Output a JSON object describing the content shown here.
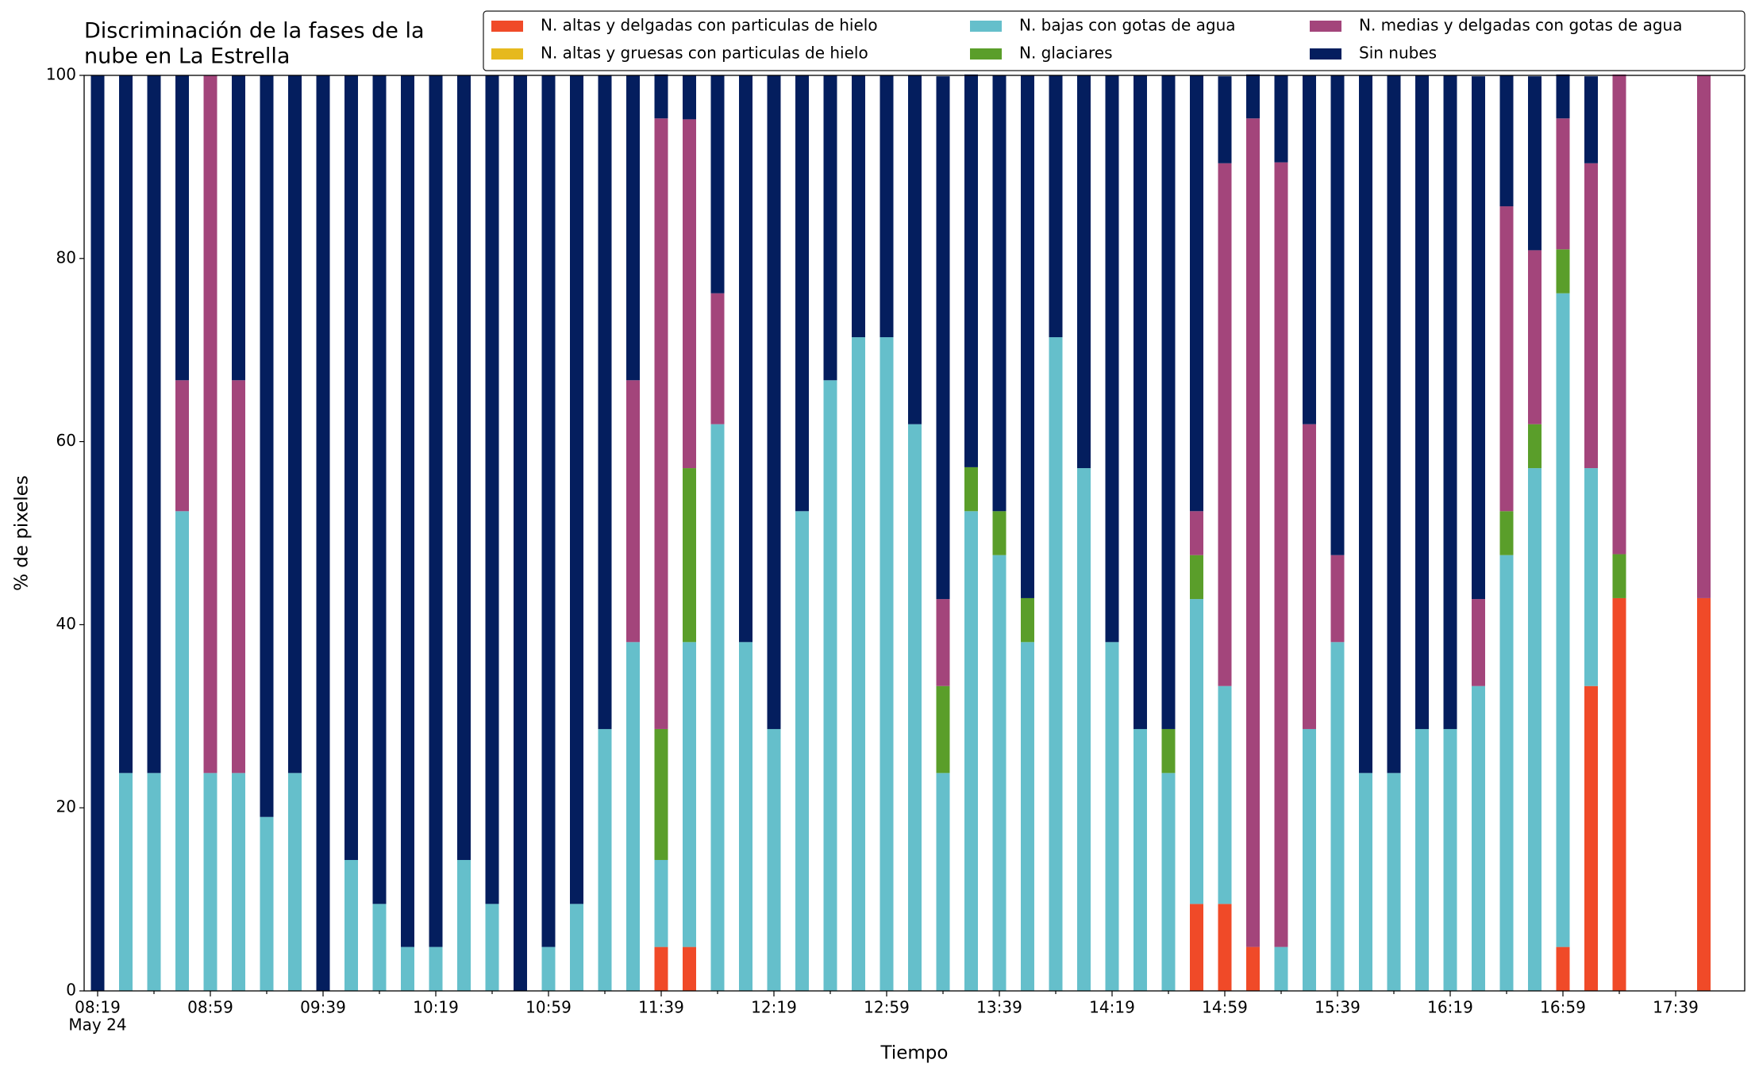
{
  "chart_data": {
    "type": "bar",
    "stacked": true,
    "title": [
      "Discriminación de la fases de la",
      "nube en La Estrella"
    ],
    "xlabel": "Tiempo",
    "ylabel": "% de pixeles",
    "x_date_label": "May 24",
    "categories": [
      "08:19",
      null,
      null,
      null,
      "08:59",
      null,
      null,
      null,
      "09:39",
      null,
      null,
      null,
      "10:19",
      null,
      null,
      null,
      "10:59",
      null,
      null,
      null,
      "11:39",
      null,
      null,
      null,
      "12:19",
      null,
      null,
      null,
      "12:59",
      null,
      null,
      null,
      "13:39",
      null,
      null,
      null,
      "14:19",
      null,
      null,
      null,
      "14:59",
      null,
      null,
      null,
      "15:39",
      null,
      null,
      null,
      "16:19",
      null,
      null,
      null,
      "16:59",
      null,
      null,
      null,
      "17:39",
      null
    ],
    "ylim": [
      0,
      100
    ],
    "yticks": [
      0,
      20,
      40,
      60,
      80,
      100
    ],
    "legend": "upper-right",
    "series": [
      {
        "name": "N. altas y delgadas con particulas de hielo",
        "color": "#f04a28",
        "values": [
          0,
          0,
          0,
          0,
          0,
          0,
          0,
          0,
          0,
          0,
          0,
          0,
          0,
          0,
          0,
          0,
          0,
          0,
          0,
          0,
          4.8,
          4.8,
          0,
          0,
          0,
          0,
          0,
          0,
          0,
          0,
          0,
          0,
          0,
          0,
          0,
          0,
          0,
          0,
          0,
          9.5,
          9.5,
          4.8,
          0,
          0,
          0,
          0,
          0,
          0,
          0,
          0,
          0,
          0,
          4.8,
          33.3,
          42.9,
          0,
          0,
          42.9
        ]
      },
      {
        "name": "N. altas y gruesas con particulas de hielo",
        "color": "#e6b91e",
        "values": [
          0,
          0,
          0,
          0,
          0,
          0,
          0,
          0,
          0,
          0,
          0,
          0,
          0,
          0,
          0,
          0,
          0,
          0,
          0,
          0,
          0,
          0,
          0,
          0,
          0,
          0,
          0,
          0,
          0,
          0,
          0,
          0,
          0,
          0,
          0,
          0,
          0,
          0,
          0,
          0,
          0,
          0,
          0,
          0,
          0,
          0,
          0,
          0,
          0,
          0,
          0,
          0,
          0,
          0,
          0,
          0,
          0,
          0
        ]
      },
      {
        "name": "N. bajas con gotas de agua",
        "color": "#65bfcb",
        "values": [
          0,
          23.8,
          23.8,
          52.4,
          23.8,
          23.8,
          19.0,
          23.8,
          0,
          14.3,
          9.5,
          4.8,
          4.8,
          14.3,
          9.5,
          0,
          4.8,
          9.5,
          28.6,
          38.1,
          9.5,
          33.3,
          61.9,
          38.1,
          28.6,
          52.4,
          66.7,
          71.4,
          71.4,
          61.9,
          23.8,
          52.4,
          47.6,
          38.1,
          71.4,
          57.1,
          38.1,
          28.6,
          23.8,
          33.3,
          23.8,
          0,
          4.8,
          28.6,
          38.1,
          23.8,
          23.8,
          28.6,
          28.6,
          33.3,
          47.6,
          57.1,
          71.4,
          23.8,
          0,
          0,
          0,
          0
        ]
      },
      {
        "name": "N. glaciares",
        "color": "#5a9e2a",
        "values": [
          0,
          0,
          0,
          0,
          0,
          0,
          0,
          0,
          0,
          0,
          0,
          0,
          0,
          0,
          0,
          0,
          0,
          0,
          0,
          0,
          14.3,
          19.0,
          0,
          0,
          0,
          0,
          0,
          0,
          0,
          0,
          9.5,
          4.8,
          4.8,
          4.8,
          0,
          0,
          0,
          0,
          4.8,
          4.8,
          0,
          0,
          0,
          0,
          0,
          0,
          0,
          0,
          0,
          0,
          4.8,
          4.8,
          4.8,
          0,
          4.8,
          0,
          0,
          0
        ]
      },
      {
        "name": "N. medias y delgadas con gotas de agua",
        "color": "#a3457b",
        "values": [
          0,
          0,
          0,
          14.3,
          76.2,
          42.9,
          0,
          0,
          0,
          0,
          0,
          0,
          0,
          0,
          0,
          0,
          0,
          0,
          0,
          28.6,
          66.7,
          38.1,
          14.3,
          0,
          0,
          0,
          0,
          0,
          0,
          0,
          9.5,
          0,
          0,
          0,
          0,
          0,
          0,
          0,
          0,
          4.8,
          57.1,
          90.5,
          85.7,
          33.3,
          9.5,
          0,
          0,
          0,
          0,
          9.5,
          33.3,
          19.0,
          14.3,
          33.3,
          52.4,
          0,
          0,
          57.1
        ]
      },
      {
        "name": "Sin nubes",
        "color": "#041e5e",
        "values": [
          100,
          76.2,
          76.2,
          33.3,
          0,
          33.3,
          81.0,
          76.2,
          100,
          85.7,
          90.5,
          95.2,
          95.2,
          85.7,
          90.5,
          100,
          95.2,
          90.5,
          71.4,
          33.3,
          4.8,
          4.8,
          23.8,
          61.9,
          71.4,
          47.6,
          33.3,
          28.6,
          28.6,
          38.1,
          57.1,
          42.9,
          47.6,
          57.1,
          28.6,
          42.9,
          61.9,
          71.4,
          71.4,
          47.6,
          9.5,
          4.8,
          9.5,
          38.1,
          52.4,
          76.2,
          76.2,
          71.4,
          71.4,
          57.1,
          14.3,
          19.0,
          4.8,
          9.5,
          0,
          0,
          0,
          0
        ]
      }
    ]
  }
}
